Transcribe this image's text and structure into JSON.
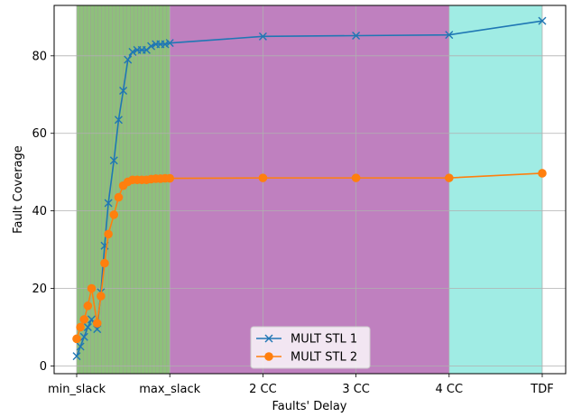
{
  "chart_data": {
    "type": "line",
    "xlabel": "Faults' Delay",
    "ylabel": "Fault Coverage",
    "x_ticks": [
      "min_slack",
      "max_slack",
      "2 CC",
      "3 CC",
      "4 CC",
      "TDF"
    ],
    "y_ticks": [
      "0",
      "20",
      "40",
      "60",
      "80"
    ],
    "ylim": [
      -2,
      93
    ],
    "grid": true,
    "legend_placement": "lower center",
    "regions": [
      {
        "from": "min_slack",
        "to": "max_slack",
        "color": "#8ec07c",
        "hatched": true
      },
      {
        "from": "max_slack",
        "to": "4 CC",
        "color": "#bf80bf"
      },
      {
        "from": "4 CC",
        "to": "TDF",
        "color": "#a0ece4"
      }
    ],
    "series": [
      {
        "name": "MULT STL 1",
        "color": "#1f77b4",
        "marker": "x",
        "x": [
          0.0,
          0.04,
          0.08,
          0.12,
          0.16,
          0.22,
          0.26,
          0.3,
          0.34,
          0.4,
          0.45,
          0.5,
          0.55,
          0.6,
          0.65,
          0.7,
          0.75,
          0.8,
          0.85,
          0.9,
          0.95,
          1.0,
          2.0,
          3.0,
          4.0,
          5.0
        ],
        "y": [
          2.5,
          5.0,
          7.5,
          10.0,
          12.0,
          9.5,
          19.0,
          31.0,
          42.0,
          53.0,
          63.5,
          71.0,
          79.0,
          81.0,
          81.5,
          81.5,
          81.5,
          82.5,
          83.0,
          83.0,
          83.0,
          83.3,
          85.0,
          85.2,
          85.4,
          89.0
        ]
      },
      {
        "name": "MULT STL 2",
        "color": "#ff7f0e",
        "marker": "o",
        "x": [
          0.0,
          0.04,
          0.08,
          0.12,
          0.16,
          0.22,
          0.26,
          0.3,
          0.34,
          0.4,
          0.45,
          0.5,
          0.55,
          0.6,
          0.65,
          0.7,
          0.75,
          0.8,
          0.85,
          0.9,
          0.95,
          1.0,
          2.0,
          3.0,
          4.0,
          5.0
        ],
        "y": [
          7.0,
          10.0,
          12.0,
          15.5,
          20.0,
          11.0,
          18.0,
          26.5,
          34.0,
          39.0,
          43.5,
          46.5,
          47.5,
          48.0,
          48.0,
          48.0,
          48.0,
          48.2,
          48.3,
          48.3,
          48.4,
          48.4,
          48.5,
          48.5,
          48.5,
          49.7
        ]
      }
    ]
  }
}
